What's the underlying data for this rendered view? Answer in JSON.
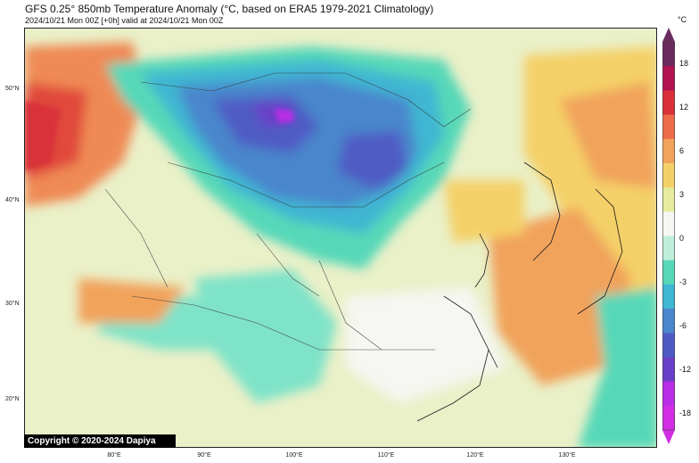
{
  "title": "GFS 0.25° 850mb Temperature Anomaly (°C, based on ERA5 1979-2021 Climatology)",
  "subtitle": "2024/10/21 Mon 00Z [+0h] valid at 2024/10/21 Mon 00Z",
  "copyright": "Copyright © 2020-2024 Dapiya",
  "colorbar": {
    "unit": "°C",
    "ticks": [
      "18",
      "12",
      "6",
      "3",
      "0",
      "-3",
      "-6",
      "-12",
      "-18"
    ],
    "colors": [
      "#6b2a5e",
      "#b0134f",
      "#d9303a",
      "#ee6b4a",
      "#f1a35c",
      "#f4d068",
      "#e6ec9e",
      "#f6f6f2",
      "#bdeed9",
      "#56d8b8",
      "#3fb6d2",
      "#4a86cc",
      "#4f5bc4",
      "#6a3fc8",
      "#b92ee6",
      "#d12de3"
    ]
  },
  "axes": {
    "latitudes": [
      "50°N",
      "40°N",
      "30°N",
      "20°N"
    ],
    "longitudes": [
      "80°E",
      "90°E",
      "100°E",
      "110°E",
      "120°E",
      "130°E"
    ]
  }
}
